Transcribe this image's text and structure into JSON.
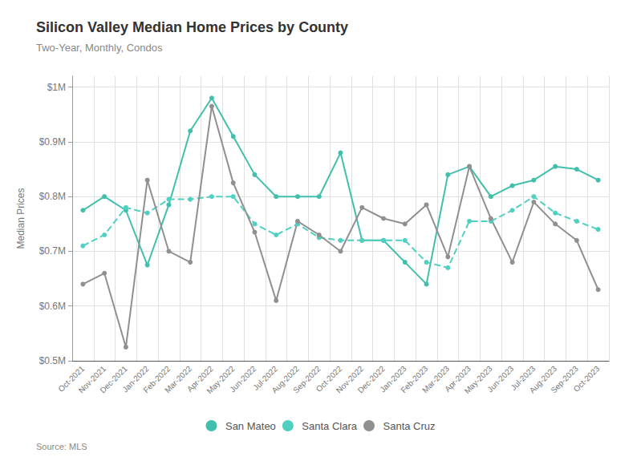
{
  "chart_data": {
    "type": "line",
    "title": "Silicon Valley Median Home Prices by County",
    "subtitle": "Two-Year, Monthly, Condos",
    "source": "Source: MLS",
    "ylabel": "Median Prices",
    "categories": [
      "Oct-2021",
      "Nov-2021",
      "Dec-2021",
      "Jan-2022",
      "Feb-2022",
      "Mar-2022",
      "Apr-2022",
      "May-2022",
      "Jun-2022",
      "Jul-2022",
      "Aug-2022",
      "Sep-2022",
      "Oct-2022",
      "Nov-2022",
      "Dec-2022",
      "Jan-2023",
      "Feb-2023",
      "Mar-2023",
      "Apr-2023",
      "May-2023",
      "Jun-2023",
      "Jul-2023",
      "Aug-2023",
      "Sep-2023",
      "Oct-2023"
    ],
    "series": [
      {
        "name": "San Mateo",
        "color": "#40bfad",
        "marker": "circle",
        "line_style": "solid",
        "values": [
          0.775,
          0.8,
          0.775,
          0.675,
          0.785,
          0.92,
          0.98,
          0.91,
          0.84,
          0.8,
          0.8,
          0.8,
          0.88,
          0.72,
          0.72,
          0.68,
          0.64,
          0.84,
          0.855,
          0.8,
          0.82,
          0.83,
          0.855,
          0.85,
          0.83
        ]
      },
      {
        "name": "Santa Clara",
        "color": "#50d0c0",
        "marker": "circle",
        "line_style": "dashed",
        "values": [
          0.71,
          0.73,
          0.78,
          0.77,
          0.795,
          0.795,
          0.8,
          0.8,
          0.75,
          0.73,
          0.75,
          0.725,
          0.72,
          0.72,
          0.72,
          0.72,
          0.68,
          0.67,
          0.755,
          0.755,
          0.775,
          0.8,
          0.77,
          0.755,
          0.74
        ]
      },
      {
        "name": "Santa Cruz",
        "color": "#909090",
        "marker": "circle",
        "line_style": "solid",
        "values": [
          0.64,
          0.66,
          0.525,
          0.83,
          0.7,
          0.68,
          0.965,
          0.825,
          0.735,
          0.61,
          0.755,
          0.73,
          0.7,
          0.78,
          0.76,
          0.75,
          0.785,
          0.69,
          0.855,
          0.76,
          0.68,
          0.79,
          0.75,
          0.72,
          0.63
        ]
      }
    ],
    "ylim": [
      0.5,
      1.02
    ],
    "yticks": [
      {
        "value": 0.5,
        "label": "$0.5M"
      },
      {
        "value": 0.6,
        "label": "$0.6M"
      },
      {
        "value": 0.7,
        "label": "$0.7M"
      },
      {
        "value": 0.8,
        "label": "$0.8M"
      },
      {
        "value": 0.9,
        "label": "$0.9M"
      },
      {
        "value": 1.0,
        "label": "$1M"
      }
    ],
    "grid": true,
    "legend": "bottom"
  }
}
